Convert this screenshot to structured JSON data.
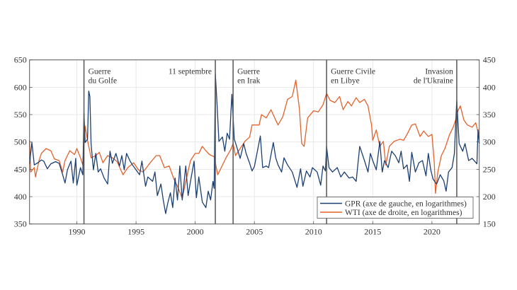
{
  "chart_data": {
    "type": "line",
    "title": "",
    "xlabel": "",
    "ylabel_left": "",
    "ylabel_right": "",
    "xlim": [
      1986,
      2024
    ],
    "ylim_left": [
      350,
      650
    ],
    "ylim_right": [
      150,
      450
    ],
    "x_ticks": [
      "1990",
      "1995",
      "2000",
      "2005",
      "2010",
      "2015",
      "2020"
    ],
    "y_ticks_left": [
      "350",
      "400",
      "450",
      "500",
      "550",
      "600",
      "650"
    ],
    "y_ticks_right": [
      "150",
      "200",
      "250",
      "300",
      "350",
      "400",
      "450"
    ],
    "grid": true,
    "legend_position": "bottom-right",
    "colors": {
      "gpr": "#1b3f72",
      "wti": "#e4622b",
      "events": "#555555",
      "grid": "#e3e3e3"
    },
    "events": [
      {
        "year": 1990.6,
        "label": [
          "Guerre",
          "du Golfe"
        ]
      },
      {
        "year": 2001.7,
        "label": [
          "11 septembre"
        ]
      },
      {
        "year": 2003.2,
        "label": [
          "Guerre",
          "en Irak"
        ]
      },
      {
        "year": 2011.1,
        "label": [
          "Guerre Civile",
          "en Libye"
        ]
      },
      {
        "year": 2022.1,
        "label": [
          "Invasion",
          "de l'Ukraine"
        ]
      }
    ],
    "series": [
      {
        "name": "GPR (axe de gauche, en logarithmes)",
        "axis": "left",
        "x": [
          1986.0,
          1986.2,
          1986.4,
          1986.7,
          1987.0,
          1987.2,
          1987.5,
          1987.8,
          1988.2,
          1988.5,
          1988.8,
          1989.0,
          1989.2,
          1989.5,
          1989.7,
          1989.9,
          1990.0,
          1990.3,
          1990.5,
          1990.6,
          1990.7,
          1990.9,
          1991.0,
          1991.1,
          1991.2,
          1991.4,
          1991.6,
          1991.8,
          1992.0,
          1992.3,
          1992.6,
          1992.8,
          1993.0,
          1993.3,
          1993.6,
          1993.8,
          1994.0,
          1994.2,
          1994.5,
          1994.7,
          1995.0,
          1995.3,
          1995.5,
          1995.8,
          1996.0,
          1996.4,
          1996.6,
          1996.8,
          1997.1,
          1997.3,
          1997.5,
          1997.7,
          1997.9,
          1998.1,
          1998.3,
          1998.5,
          1998.7,
          1998.9,
          1999.2,
          1999.4,
          1999.6,
          1999.9,
          2000.1,
          2000.3,
          2000.6,
          2000.9,
          2001.1,
          2001.3,
          2001.5,
          2001.6,
          2001.7,
          2001.85,
          2002.0,
          2002.3,
          2002.5,
          2002.7,
          2002.9,
          2003.1,
          2003.3,
          2003.5,
          2003.8,
          2004.1,
          2004.3,
          2004.6,
          2004.8,
          2005.0,
          2005.5,
          2005.7,
          2006.0,
          2006.2,
          2006.6,
          2006.8,
          2007.0,
          2007.3,
          2007.5,
          2007.8,
          2008.2,
          2008.6,
          2008.9,
          2009.1,
          2009.4,
          2009.7,
          2009.9,
          2010.3,
          2010.6,
          2010.8,
          2011.0,
          2011.1,
          2011.3,
          2011.6,
          2012.0,
          2012.3,
          2012.6,
          2013.0,
          2013.3,
          2013.6,
          2013.9,
          2014.3,
          2014.6,
          2014.8,
          2015.0,
          2015.3,
          2015.6,
          2015.8,
          2016.0,
          2016.3,
          2016.6,
          2016.9,
          2017.2,
          2017.4,
          2017.6,
          2017.9,
          2018.1,
          2018.3,
          2018.6,
          2018.9,
          2019.2,
          2019.5,
          2019.7,
          2019.9,
          2020.1,
          2020.4,
          2020.7,
          2021.0,
          2021.2,
          2021.4,
          2021.7,
          2021.9,
          2022.1,
          2022.3,
          2022.6,
          2022.8,
          2023.1,
          2023.4,
          2023.8,
          2023.9,
          2024.0
        ],
        "values": [
          460,
          499,
          458,
          462,
          467,
          465,
          451,
          460,
          464,
          461,
          440,
          425,
          449,
          465,
          425,
          470,
          421,
          453,
          440,
          553,
          499,
          505,
          593,
          583,
          497,
          449,
          479,
          445,
          451,
          434,
          423,
          483,
          461,
          479,
          456,
          475,
          449,
          479,
          465,
          458,
          449,
          440,
          465,
          419,
          436,
          428,
          445,
          402,
          423,
          394,
          369,
          390,
          407,
          380,
          434,
          394,
          456,
          394,
          456,
          402,
          428,
          465,
          398,
          436,
          390,
          380,
          410,
          394,
          428,
          415,
          624,
          566,
          501,
          509,
          483,
          516,
          505,
          587,
          505,
          492,
          470,
          497,
          479,
          461,
          447,
          455,
          511,
          453,
          456,
          453,
          499,
          471,
          458,
          445,
          471,
          458,
          445,
          417,
          451,
          419,
          447,
          436,
          453,
          445,
          421,
          456,
          447,
          492,
          453,
          445,
          453,
          436,
          445,
          434,
          436,
          428,
          492,
          466,
          445,
          479,
          466,
          449,
          501,
          445,
          466,
          453,
          483,
          475,
          462,
          483,
          451,
          458,
          428,
          481,
          445,
          462,
          466,
          438,
          479,
          449,
          432,
          423,
          440,
          429,
          410,
          445,
          453,
          479,
          576,
          497,
          483,
          497,
          466,
          470,
          460,
          522,
          497
        ]
      },
      {
        "name": "WTI (axe de droite, en logarithmes)",
        "axis": "right",
        "x": [
          1986.0,
          1986.1,
          1986.4,
          1986.5,
          1986.8,
          1987.0,
          1987.4,
          1987.8,
          1988.1,
          1988.5,
          1988.8,
          1989.0,
          1989.4,
          1989.8,
          1990.0,
          1990.3,
          1990.5,
          1990.7,
          1990.9,
          1991.2,
          1991.6,
          1991.9,
          1992.2,
          1992.6,
          1993.0,
          1993.4,
          1993.9,
          1994.3,
          1994.8,
          1995.2,
          1995.6,
          1996.2,
          1996.7,
          1997.0,
          1997.4,
          1997.8,
          1998.2,
          1998.5,
          1998.9,
          1999.2,
          1999.6,
          2000.0,
          2000.3,
          2000.6,
          2000.9,
          2001.2,
          2001.6,
          2001.9,
          2002.2,
          2002.6,
          2003.0,
          2003.2,
          2003.4,
          2003.8,
          2004.2,
          2004.6,
          2004.8,
          2005.4,
          2005.6,
          2006.0,
          2006.4,
          2006.8,
          2007.0,
          2007.4,
          2007.8,
          2008.2,
          2008.5,
          2008.8,
          2009.0,
          2009.2,
          2009.5,
          2010.0,
          2010.4,
          2010.8,
          2011.1,
          2011.4,
          2011.8,
          2012.2,
          2012.5,
          2012.9,
          2013.2,
          2013.6,
          2013.9,
          2014.3,
          2014.6,
          2014.9,
          2015.0,
          2015.3,
          2015.6,
          2015.9,
          2016.1,
          2016.4,
          2016.8,
          2017.3,
          2017.6,
          2017.9,
          2018.3,
          2018.6,
          2019.0,
          2019.3,
          2019.7,
          2020.0,
          2020.2,
          2020.3,
          2020.5,
          2020.8,
          2021.1,
          2021.5,
          2021.8,
          2022.0,
          2022.2,
          2022.4,
          2022.7,
          2023.0,
          2023.4,
          2023.7,
          2023.9,
          2024.0
        ],
        "values": [
          303,
          245,
          253,
          236,
          266,
          279,
          288,
          284,
          269,
          266,
          245,
          266,
          284,
          277,
          288,
          271,
          258,
          329,
          303,
          271,
          275,
          281,
          262,
          275,
          271,
          264,
          240,
          253,
          262,
          249,
          245,
          262,
          275,
          275,
          253,
          256,
          232,
          219,
          197,
          228,
          266,
          279,
          279,
          292,
          284,
          277,
          273,
          240,
          253,
          271,
          286,
          297,
          275,
          288,
          301,
          309,
          331,
          331,
          350,
          344,
          359,
          340,
          331,
          346,
          378,
          383,
          413,
          361,
          297,
          292,
          344,
          357,
          355,
          368,
          389,
          376,
          372,
          383,
          359,
          374,
          366,
          381,
          372,
          378,
          366,
          331,
          303,
          322,
          292,
          301,
          258,
          292,
          301,
          305,
          303,
          314,
          331,
          333,
          310,
          320,
          310,
          314,
          262,
          206,
          245,
          275,
          288,
          314,
          327,
          340,
          357,
          366,
          340,
          331,
          327,
          335,
          318,
          316
        ]
      }
    ]
  }
}
